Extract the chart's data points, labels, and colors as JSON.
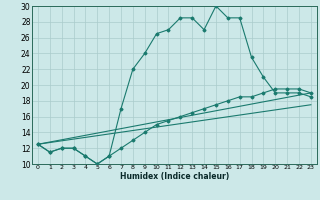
{
  "title": "",
  "xlabel": "Humidex (Indice chaleur)",
  "background_color": "#cce8e8",
  "grid_color": "#aacccc",
  "line_color": "#1a7a6e",
  "xlim": [
    -0.5,
    23.5
  ],
  "ylim": [
    10,
    30
  ],
  "xticks": [
    0,
    1,
    2,
    3,
    4,
    5,
    6,
    7,
    8,
    9,
    10,
    11,
    12,
    13,
    14,
    15,
    16,
    17,
    18,
    19,
    20,
    21,
    22,
    23
  ],
  "yticks": [
    10,
    12,
    14,
    16,
    18,
    20,
    22,
    24,
    26,
    28,
    30
  ],
  "line1_x": [
    0,
    1,
    2,
    3,
    4,
    5,
    6,
    7,
    8,
    9,
    10,
    11,
    12,
    13,
    14,
    15,
    16,
    17,
    18,
    19,
    20,
    21,
    22,
    23
  ],
  "line1_y": [
    12.5,
    11.5,
    12,
    12,
    11,
    10,
    11,
    17,
    22,
    24,
    26.5,
    27,
    28.5,
    28.5,
    27,
    30,
    28.5,
    28.5,
    23.5,
    21,
    19,
    19,
    19,
    18.5
  ],
  "line2_x": [
    0,
    1,
    2,
    3,
    4,
    5,
    6,
    7,
    8,
    9,
    10,
    11,
    12,
    13,
    14,
    15,
    16,
    17,
    18,
    19,
    20,
    21,
    22,
    23
  ],
  "line2_y": [
    12.5,
    11.5,
    12,
    12,
    11,
    10,
    11,
    12,
    13,
    14,
    15,
    15.5,
    16,
    16.5,
    17,
    17.5,
    18,
    18.5,
    18.5,
    19,
    19.5,
    19.5,
    19.5,
    19
  ],
  "line3_x": [
    0,
    23
  ],
  "line3_y": [
    12.5,
    19
  ],
  "line4_x": [
    0,
    23
  ],
  "line4_y": [
    12.5,
    17.5
  ]
}
